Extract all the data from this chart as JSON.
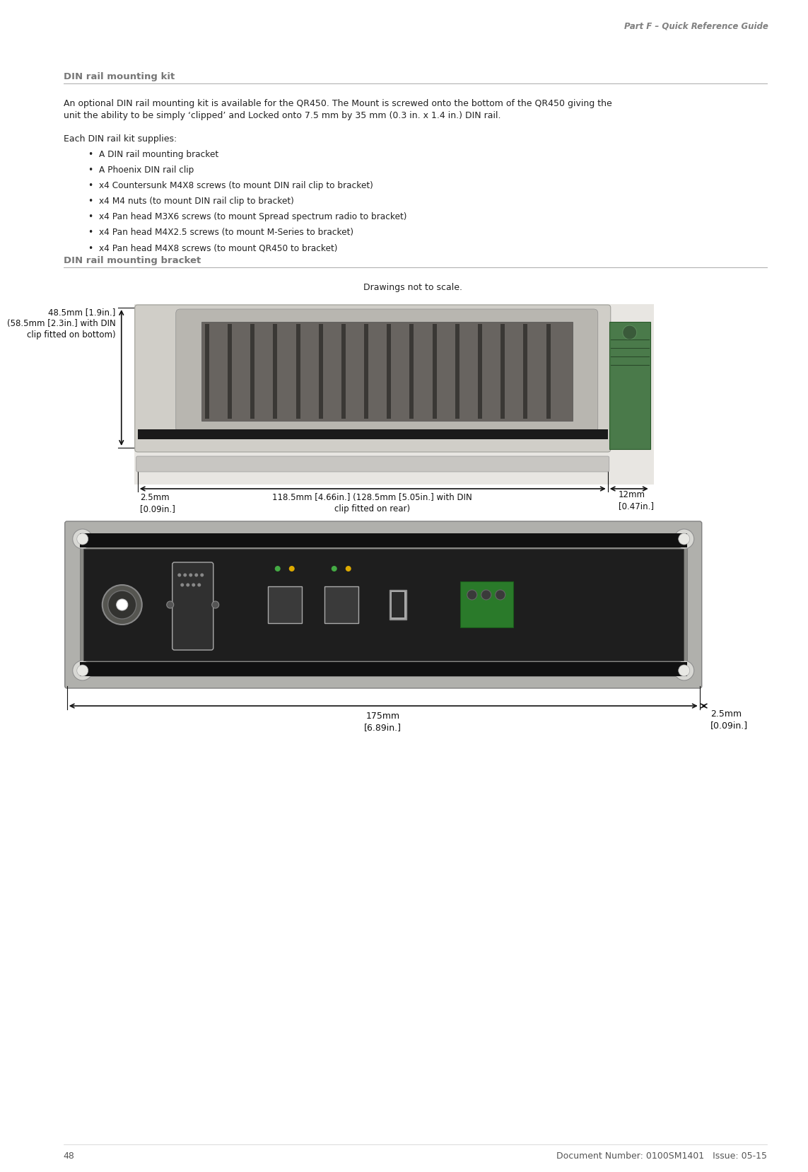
{
  "page_bg": "#ffffff",
  "header_text": "Part F – Quick Reference Guide",
  "header_color": "#808080",
  "header_fontsize": 8.5,
  "footer_page": "48",
  "footer_doc": "Document Number: 0100SM1401   Issue: 05-15",
  "footer_color": "#555555",
  "footer_fontsize": 9,
  "section1_title": "DIN rail mounting kit",
  "section2_title": "DIN rail mounting bracket",
  "section_title_color": "#777777",
  "section_title_fontsize": 9.5,
  "body_color": "#222222",
  "body_fontsize": 9,
  "para1_line1": "An optional DIN rail mounting kit is available for the QR450. The Mount is screwed onto the bottom of the QR450 giving the",
  "para1_line2": "unit the ability to be simply ‘clipped’ and Locked onto 7.5 mm by 35 mm (0.3 in. x 1.4 in.) DIN rail.",
  "each_label": "Each DIN rail kit supplies:",
  "bullets": [
    "A DIN rail mounting bracket",
    "A Phoenix DIN rail clip",
    "x4 Countersunk M4X8 screws (to mount DIN rail clip to bracket)",
    "x4 M4 nuts (to mount DIN rail clip to bracket)",
    "x4 Pan head M3X6 screws (to mount Spread spectrum radio to bracket)",
    "x4 Pan head M4X2.5 screws (to mount M-Series to bracket)",
    "x4 Pan head M4X8 screws (to mount QR450 to bracket)"
  ],
  "drawings_note": "Drawings not to scale.",
  "dim_118_line1": "118.5mm [4.66in.] (128.5mm [5.05in.] with DIN",
  "dim_118_line2": "clip fitted on rear)",
  "dim_12_line1": "12mm",
  "dim_12_line2": "[0.47in.]",
  "dim_2p5_left_line1": "2.5mm",
  "dim_2p5_left_line2": "[0.09in.]",
  "dim_48_line1": "48.5mm [1.9in.]",
  "dim_48_line2": "(58.5mm [2.3in.] with DIN",
  "dim_48_line3": "clip fitted on bottom)",
  "dim_175_line1": "175mm",
  "dim_175_line2": "[6.89in.]",
  "dim_2p5_right_line1": "2.5mm",
  "dim_2p5_right_line2": "[0.09in.]",
  "dim_color": "#111111",
  "dim_fontsize": 8.5
}
